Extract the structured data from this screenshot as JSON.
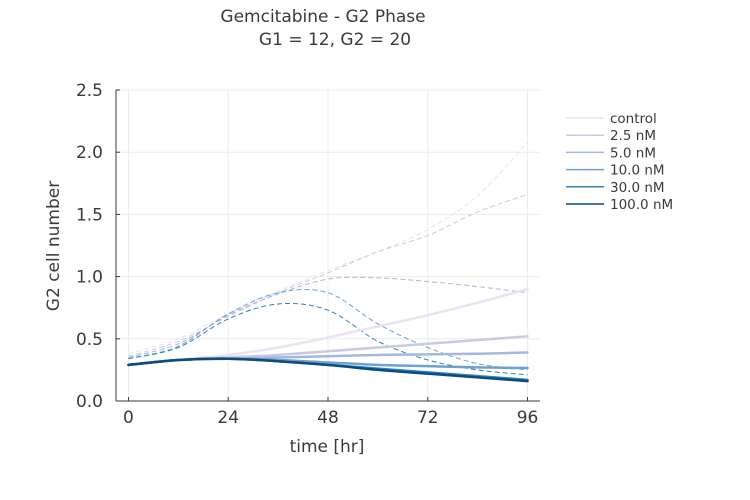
{
  "chart_data": {
    "type": "line",
    "title": "Gemcitabine - G2 Phase",
    "subtitle": "G1 = 12, G2 = 20",
    "xlabel": "time [hr]",
    "ylabel": "G2 cell number",
    "xlim": [
      -3,
      99
    ],
    "ylim": [
      0,
      2.5
    ],
    "xticks": [
      0,
      24,
      48,
      72,
      96
    ],
    "yticks": [
      0.0,
      0.5,
      1.0,
      1.5,
      2.0,
      2.5
    ],
    "grid": true,
    "legend_position": "right-top",
    "line_styles": {
      "model": "solid",
      "data": "dashed"
    },
    "series": [
      {
        "name": "control",
        "color": "#e9e2f0",
        "model": {
          "x": [
            0,
            12,
            24,
            36,
            48,
            60,
            72,
            84,
            96
          ],
          "y": [
            0.29,
            0.33,
            0.37,
            0.43,
            0.51,
            0.6,
            0.69,
            0.79,
            0.9
          ]
        },
        "data": {
          "x": [
            0,
            12,
            24,
            36,
            48,
            60,
            72,
            84,
            96
          ],
          "y": [
            0.38,
            0.5,
            0.7,
            0.88,
            1.05,
            1.2,
            1.38,
            1.65,
            2.08
          ]
        }
      },
      {
        "name": "2.5 nM",
        "color": "#c9c9e0",
        "model": {
          "x": [
            0,
            12,
            24,
            36,
            48,
            60,
            72,
            84,
            96
          ],
          "y": [
            0.29,
            0.33,
            0.35,
            0.37,
            0.4,
            0.43,
            0.46,
            0.49,
            0.52
          ]
        },
        "data": {
          "x": [
            0,
            12,
            24,
            36,
            48,
            60,
            72,
            84,
            96
          ],
          "y": [
            0.36,
            0.48,
            0.68,
            0.87,
            1.03,
            1.2,
            1.33,
            1.52,
            1.66
          ]
        }
      },
      {
        "name": "5.0 nM",
        "color": "#a3b8dc",
        "model": {
          "x": [
            0,
            12,
            24,
            36,
            48,
            60,
            72,
            84,
            96
          ],
          "y": [
            0.29,
            0.33,
            0.34,
            0.35,
            0.36,
            0.37,
            0.375,
            0.38,
            0.39
          ]
        },
        "data": {
          "x": [
            0,
            12,
            24,
            36,
            48,
            60,
            72,
            84,
            96
          ],
          "y": [
            0.35,
            0.46,
            0.69,
            0.86,
            0.98,
            0.99,
            0.96,
            0.92,
            0.87
          ]
        }
      },
      {
        "name": "10.0 nM",
        "color": "#6fa1d0",
        "model": {
          "x": [
            0,
            12,
            24,
            36,
            48,
            60,
            72,
            84,
            96
          ],
          "y": [
            0.29,
            0.33,
            0.34,
            0.33,
            0.31,
            0.29,
            0.28,
            0.27,
            0.265
          ]
        },
        "data": {
          "x": [
            0,
            12,
            24,
            36,
            48,
            60,
            72,
            84,
            96
          ],
          "y": [
            0.34,
            0.44,
            0.7,
            0.87,
            0.87,
            0.62,
            0.43,
            0.3,
            0.25
          ]
        }
      },
      {
        "name": "30.0 nM",
        "color": "#2e81bb",
        "model": {
          "x": [
            0,
            12,
            24,
            36,
            48,
            60,
            72,
            84,
            96
          ],
          "y": [
            0.29,
            0.33,
            0.34,
            0.32,
            0.29,
            0.26,
            0.23,
            0.2,
            0.17
          ]
        },
        "data": {
          "x": [
            0,
            12,
            24,
            36,
            48,
            60,
            72,
            84,
            96
          ],
          "y": [
            0.34,
            0.43,
            0.66,
            0.78,
            0.73,
            0.48,
            0.33,
            0.25,
            0.21
          ]
        }
      },
      {
        "name": "100.0 nM",
        "color": "#0b4c7d",
        "model": {
          "x": [
            0,
            12,
            24,
            36,
            48,
            60,
            72,
            84,
            96
          ],
          "y": [
            0.29,
            0.33,
            0.34,
            0.32,
            0.29,
            0.25,
            0.22,
            0.19,
            0.16
          ]
        },
        "data": null
      }
    ]
  }
}
